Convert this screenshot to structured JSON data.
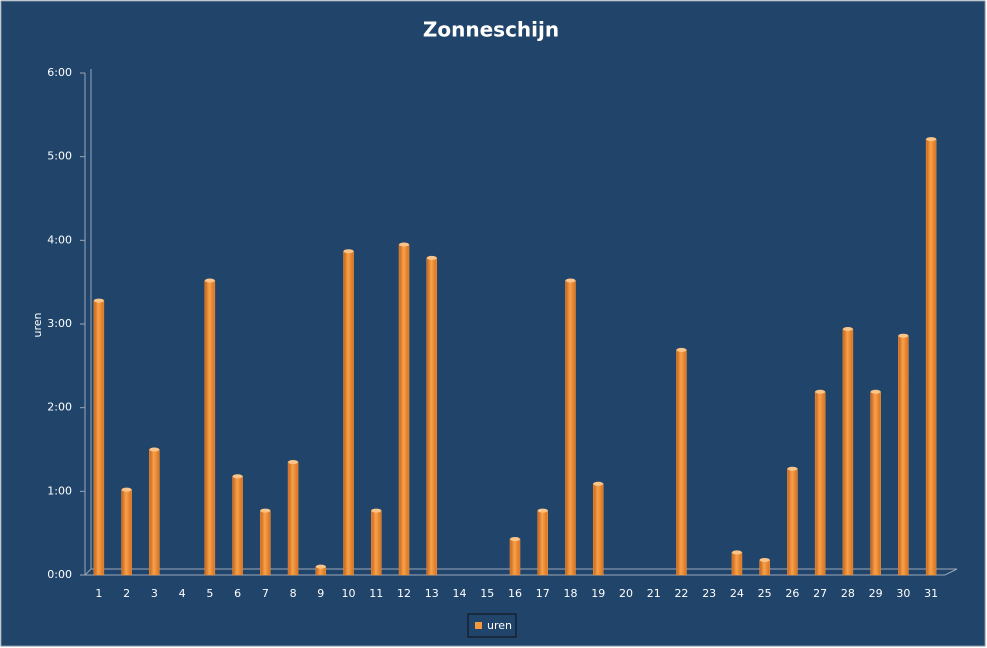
{
  "chart_data": {
    "type": "bar",
    "title": "Zonneschijn",
    "y_label": "uren",
    "categories": [
      "1",
      "2",
      "3",
      "4",
      "5",
      "6",
      "7",
      "8",
      "9",
      "10",
      "11",
      "12",
      "13",
      "14",
      "15",
      "16",
      "17",
      "18",
      "19",
      "20",
      "21",
      "22",
      "23",
      "24",
      "25",
      "26",
      "27",
      "28",
      "29",
      "30",
      "31"
    ],
    "series": [
      {
        "name": "uren",
        "color": "#f59a3c",
        "values": [
          3.28,
          1.02,
          1.5,
          0,
          3.52,
          1.18,
          0.77,
          1.35,
          0.1,
          3.87,
          0.77,
          3.95,
          3.79,
          0,
          0,
          0.43,
          0.77,
          3.52,
          1.09,
          0,
          0,
          2.69,
          0,
          0.27,
          0.18,
          1.27,
          2.19,
          2.94,
          2.19,
          2.86,
          5.21
        ]
      }
    ],
    "ylim": [
      0,
      6
    ],
    "yticks": [
      {
        "value": 0,
        "label": "0:00"
      },
      {
        "value": 1,
        "label": "1:00"
      },
      {
        "value": 2,
        "label": "2:00"
      },
      {
        "value": 3,
        "label": "3:00"
      },
      {
        "value": 4,
        "label": "4:00"
      },
      {
        "value": 5,
        "label": "5:00"
      },
      {
        "value": 6,
        "label": "6:00"
      }
    ],
    "grid": false,
    "legend": "bottom"
  }
}
